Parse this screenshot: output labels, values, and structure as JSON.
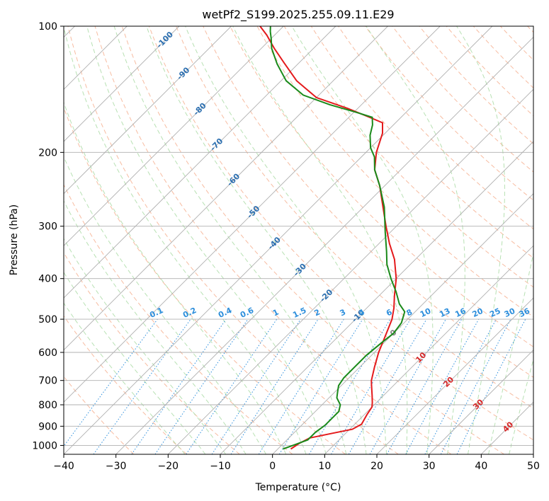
{
  "chart_data": {
    "type": "line",
    "title": "wetPf2_S199.2025.255.09.11.E29",
    "xlabel": "Temperature (°C)",
    "ylabel": "Pressure (hPa)",
    "xlim": [
      -40,
      50
    ],
    "ylim": [
      1050,
      100
    ],
    "yscale": "log",
    "x_ticks": [
      "−40",
      "−30",
      "−20",
      "−10",
      "0",
      "10",
      "20",
      "30",
      "40",
      "50"
    ],
    "y_ticks": [
      {
        "p": 1000,
        "label": "1000"
      },
      {
        "p": 900,
        "label": "900"
      },
      {
        "p": 800,
        "label": "800"
      },
      {
        "p": 700,
        "label": "700"
      },
      {
        "p": 600,
        "label": "600"
      },
      {
        "p": 500,
        "label": "500"
      },
      {
        "p": 400,
        "label": "400"
      },
      {
        "p": 300,
        "label": "300"
      },
      {
        "p": 200,
        "label": "200"
      },
      {
        "p": 100,
        "label": "100"
      }
    ],
    "grid": true,
    "colors": {
      "temperature": "#e41a1c",
      "dewpoint": "#1a8a1a",
      "isotherm": "#b0b0b0",
      "dry_adiabat": "#f4a582",
      "moist_adiabat": "#a6d9a0",
      "mixing_ratio": "#2e8fdc",
      "blue_label": "#2c6fb0",
      "red_label": "#d62728",
      "zero_label": "#808080"
    },
    "isotherm_labels": [
      {
        "text": "-100",
        "t": -100,
        "p": 108,
        "color": "blue"
      },
      {
        "text": "-90",
        "t": -90,
        "p": 130,
        "color": "blue"
      },
      {
        "text": "-80",
        "t": -80,
        "p": 158,
        "color": "blue"
      },
      {
        "text": "-70",
        "t": -70,
        "p": 192,
        "color": "blue"
      },
      {
        "text": "-60",
        "t": -60,
        "p": 233,
        "color": "blue"
      },
      {
        "text": "-50",
        "t": -50,
        "p": 278,
        "color": "blue"
      },
      {
        "text": "-40",
        "t": -40,
        "p": 330,
        "color": "blue"
      },
      {
        "text": "-30",
        "t": -30,
        "p": 382,
        "color": "blue"
      },
      {
        "text": "-20",
        "t": -20,
        "p": 440,
        "color": "blue"
      },
      {
        "text": "-10",
        "t": -10,
        "p": 492,
        "color": "blue"
      },
      {
        "text": "0",
        "t": 0,
        "p": 540,
        "color": "gray"
      },
      {
        "text": "10",
        "t": 10,
        "p": 618,
        "color": "red"
      },
      {
        "text": "20",
        "t": 20,
        "p": 707,
        "color": "red"
      },
      {
        "text": "30",
        "t": 30,
        "p": 800,
        "color": "red"
      },
      {
        "text": "40",
        "t": 40,
        "p": 905,
        "color": "red"
      }
    ],
    "mixing_ratio_labels": [
      {
        "text": "0.1",
        "g": 0.1
      },
      {
        "text": "0.2",
        "g": 0.2
      },
      {
        "text": "0.4",
        "g": 0.4
      },
      {
        "text": "0.6",
        "g": 0.6
      },
      {
        "text": "1",
        "g": 1
      },
      {
        "text": "1.5",
        "g": 1.5
      },
      {
        "text": "2",
        "g": 2
      },
      {
        "text": "3",
        "g": 3
      },
      {
        "text": "4",
        "g": 4
      },
      {
        "text": "6",
        "g": 6
      },
      {
        "text": "8",
        "g": 8
      },
      {
        "text": "10",
        "g": 10
      },
      {
        "text": "13",
        "g": 13
      },
      {
        "text": "16",
        "g": 16
      },
      {
        "text": "20",
        "g": 20
      },
      {
        "text": "25",
        "g": 25
      },
      {
        "text": "30",
        "g": 30
      },
      {
        "text": "36",
        "g": 36
      }
    ],
    "series": [
      {
        "name": "temperature",
        "color": "#e41a1c",
        "points": [
          [
            2.5,
            1020
          ],
          [
            3.0,
            990
          ],
          [
            4.0,
            960
          ],
          [
            7.5,
            935
          ],
          [
            10.5,
            915
          ],
          [
            11.3,
            890
          ],
          [
            10.5,
            845
          ],
          [
            10.0,
            810
          ],
          [
            9.2,
            790
          ],
          [
            7.8,
            760
          ],
          [
            5.8,
            720
          ],
          [
            4.8,
            700
          ],
          [
            2.8,
            650
          ],
          [
            0.8,
            600
          ],
          [
            -1.0,
            550
          ],
          [
            -3.0,
            500
          ],
          [
            -4.8,
            470
          ],
          [
            -7.0,
            440
          ],
          [
            -10.0,
            400
          ],
          [
            -14.0,
            360
          ],
          [
            -18.0,
            330
          ],
          [
            -22.0,
            300
          ],
          [
            -27.0,
            265
          ],
          [
            -31.0,
            240
          ],
          [
            -35.0,
            220
          ],
          [
            -38.0,
            200
          ],
          [
            -40.5,
            180
          ],
          [
            -42.5,
            170
          ],
          [
            -46.0,
            165
          ],
          [
            -52.0,
            157
          ],
          [
            -60.0,
            148
          ],
          [
            -67.0,
            135
          ],
          [
            -73.0,
            122
          ],
          [
            -77.5,
            113
          ],
          [
            -81.5,
            105
          ],
          [
            -84.5,
            100
          ]
        ]
      },
      {
        "name": "dewpoint",
        "color": "#1a8a1a",
        "points": [
          [
            1.0,
            1020
          ],
          [
            2.5,
            995
          ],
          [
            4.0,
            970
          ],
          [
            4.0,
            930
          ],
          [
            4.5,
            895
          ],
          [
            4.5,
            860
          ],
          [
            4.5,
            830
          ],
          [
            3.5,
            800
          ],
          [
            1.5,
            770
          ],
          [
            0.5,
            745
          ],
          [
            -0.5,
            720
          ],
          [
            -1.0,
            690
          ],
          [
            -1.0,
            650
          ],
          [
            -1.0,
            610
          ],
          [
            -0.5,
            570
          ],
          [
            0.0,
            540
          ],
          [
            -0.5,
            510
          ],
          [
            -2.0,
            480
          ],
          [
            -4.5,
            460
          ],
          [
            -7.5,
            430
          ],
          [
            -11.0,
            400
          ],
          [
            -14.5,
            370
          ],
          [
            -17.0,
            345
          ],
          [
            -21.0,
            310
          ],
          [
            -26.0,
            270
          ],
          [
            -31.0,
            240
          ],
          [
            -35.0,
            220
          ],
          [
            -37.5,
            205
          ],
          [
            -40.0,
            195
          ],
          [
            -42.5,
            182
          ],
          [
            -44.0,
            172
          ],
          [
            -45.5,
            165
          ],
          [
            -50.0,
            160
          ],
          [
            -56.0,
            154
          ],
          [
            -63.0,
            146
          ],
          [
            -69.0,
            135
          ],
          [
            -74.0,
            123
          ],
          [
            -78.0,
            113
          ],
          [
            -80.0,
            107
          ],
          [
            -81.5,
            103
          ],
          [
            -82.5,
            100
          ]
        ]
      }
    ]
  }
}
